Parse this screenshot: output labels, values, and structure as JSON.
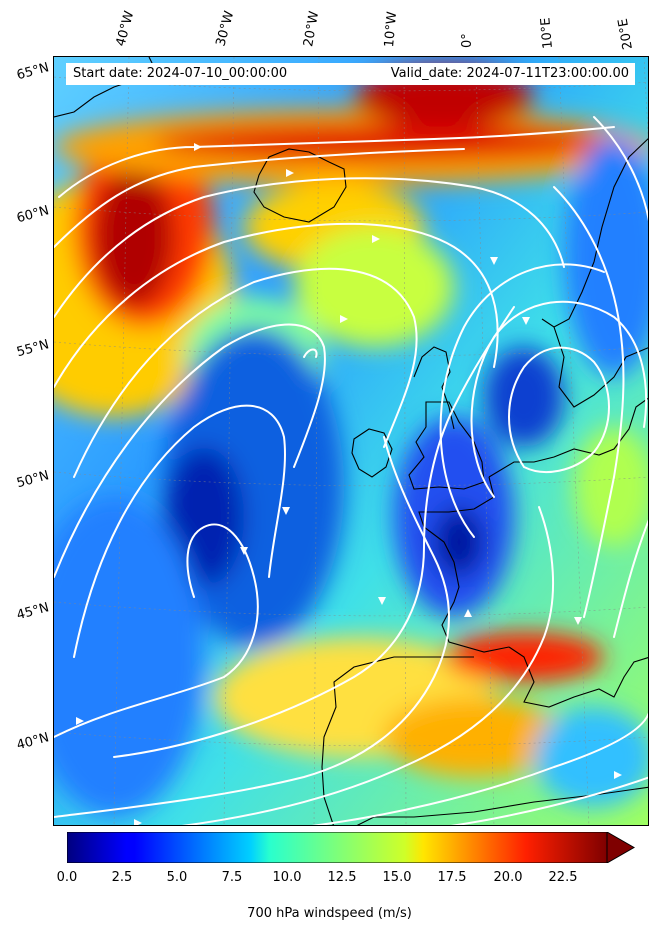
{
  "header": {
    "start_date": "Start date: 2024-07-10_00:00:00",
    "valid_date": "Valid_date: 2024-07-11T23:00:00.00"
  },
  "map": {
    "field": "700 hPa windspeed",
    "units": "m/s",
    "longitude_labels": [
      "40°W",
      "30°W",
      "20°W",
      "10°W",
      "0°",
      "10°E",
      "20°E"
    ],
    "latitude_labels": [
      "65°N",
      "60°N",
      "55°N",
      "50°N",
      "45°N",
      "40°N"
    ],
    "coastline_color": "#000000",
    "streamline_color": "#ffffff",
    "colormap": "jet"
  },
  "colorbar": {
    "label": "700 hPa windspeed (m/s)",
    "ticks": [
      "0.0",
      "2.5",
      "5.0",
      "7.5",
      "10.0",
      "12.5",
      "15.0",
      "17.5",
      "20.0",
      "22.5"
    ],
    "min": 0,
    "max": 25,
    "extend": "max"
  }
}
